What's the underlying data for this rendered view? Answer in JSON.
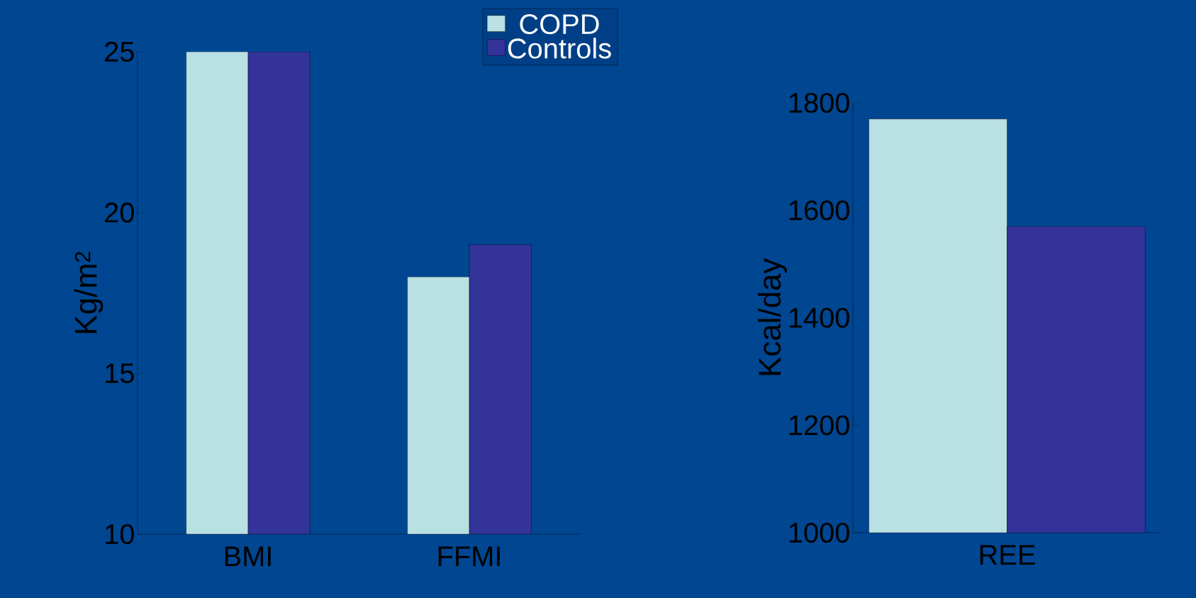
{
  "chart_data": [
    {
      "type": "bar",
      "categories": [
        "BMI",
        "FFMI"
      ],
      "ylabel": "Kg/m$^{2}$",
      "ylim": [
        10,
        25
      ],
      "yticks": [
        10,
        15,
        20,
        25
      ],
      "legend": "top right",
      "series": [
        {
          "name": "COPD",
          "color": "#b9e0e2",
          "values": [
            25,
            18
          ]
        },
        {
          "name": "Controls",
          "color": "#333399",
          "values": [
            25,
            19
          ]
        }
      ]
    },
    {
      "type": "bar",
      "categories": [
        "REE"
      ],
      "ylabel": "Kcal/day",
      "ylim": [
        1000,
        1800
      ],
      "yticks": [
        1000,
        1200,
        1400,
        1600,
        1800
      ],
      "series": [
        {
          "color": "#b9e0e2",
          "values": [
            1770
          ]
        },
        {
          "color": "#333399",
          "values": [
            1570
          ]
        }
      ]
    }
  ]
}
